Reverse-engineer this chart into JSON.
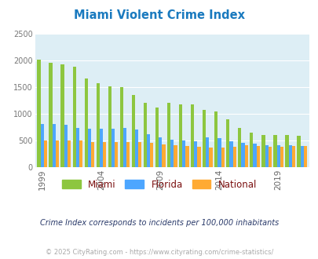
{
  "title": "Miami Violent Crime Index",
  "years": [
    1999,
    2000,
    2001,
    2002,
    2003,
    2004,
    2005,
    2006,
    2007,
    2008,
    2009,
    2010,
    2011,
    2012,
    2013,
    2014,
    2015,
    2016,
    2017,
    2018,
    2019,
    2020,
    2021
  ],
  "miami": [
    2020,
    1950,
    1920,
    1880,
    1660,
    1570,
    1510,
    1500,
    1350,
    1200,
    1110,
    1200,
    1175,
    1175,
    1065,
    1035,
    900,
    730,
    640,
    600,
    600,
    600,
    590
  ],
  "florida": [
    810,
    810,
    785,
    740,
    720,
    715,
    720,
    730,
    700,
    620,
    555,
    520,
    500,
    490,
    555,
    540,
    490,
    455,
    440,
    415,
    410,
    410,
    400
  ],
  "national": [
    505,
    505,
    505,
    495,
    475,
    470,
    470,
    475,
    465,
    455,
    430,
    405,
    390,
    385,
    370,
    365,
    375,
    410,
    395,
    385,
    380,
    395,
    390
  ],
  "miami_color": "#8dc63f",
  "florida_color": "#4da6ff",
  "national_color": "#ffaa33",
  "bg_color": "#ffffff",
  "plot_bg": "#ddeef5",
  "title_color": "#1a7abf",
  "grid_color": "#ffffff",
  "ylim": [
    0,
    2500
  ],
  "yticks": [
    0,
    500,
    1000,
    1500,
    2000,
    2500
  ],
  "xlabel_ticks": [
    1999,
    2004,
    2009,
    2014,
    2019
  ],
  "subtitle": "Crime Index corresponds to incidents per 100,000 inhabitants",
  "footer": "© 2025 CityRating.com - https://www.cityrating.com/crime-statistics/",
  "subtitle_color": "#2a3a6a",
  "footer_color": "#aaaaaa",
  "legend_label_color": "#7b1010"
}
